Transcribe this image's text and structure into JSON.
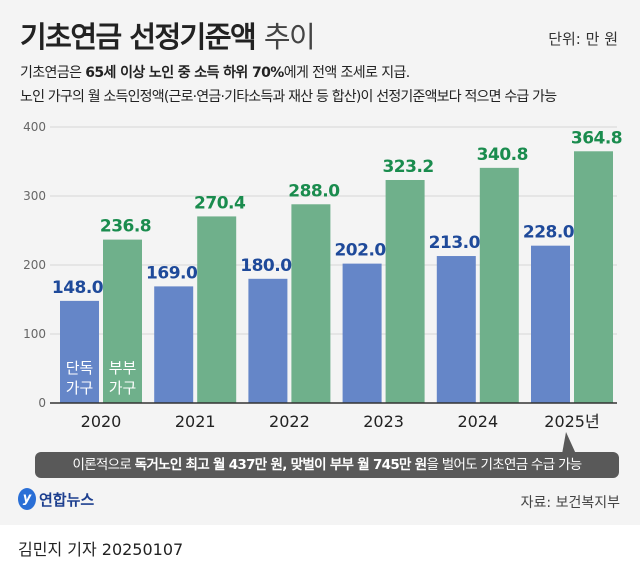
{
  "header": {
    "title_bold": "기초연금 선정기준액",
    "title_light": "추이",
    "unit": "단위: 만 원"
  },
  "description": {
    "line1": [
      {
        "text": "기초연금은 ",
        "bold": false
      },
      {
        "text": "65세 이상 노인 중 소득 하위 70%",
        "bold": true
      },
      {
        "text": "에게 전액 조세로 지급.",
        "bold": false
      }
    ],
    "line2": "노인 가구의 월 소득인정액(근로·연금·기타소득과 재산 등 합산)이 선정기준액보다 적으면 수급 가능"
  },
  "chart_data": {
    "type": "bar",
    "categories": [
      "2020",
      "2021",
      "2022",
      "2023",
      "2024",
      "2025년"
    ],
    "series": [
      {
        "name": "단독 가구",
        "values": [
          148.0,
          169.0,
          180.0,
          202.0,
          213.0,
          228.0
        ],
        "color": "#6586c8",
        "label_color": "#1f4a9a"
      },
      {
        "name": "부부 가구",
        "values": [
          236.8,
          270.4,
          288.0,
          323.2,
          340.8,
          364.8
        ],
        "color": "#6fb08b",
        "label_color": "#1a8c4e"
      }
    ],
    "yticks": [
      0,
      100,
      200,
      300,
      400
    ],
    "ylim": [
      0,
      400
    ],
    "grid": true,
    "legend": "inside first bars"
  },
  "callout": [
    {
      "text": "이론적으로 ",
      "bold": false
    },
    {
      "text": "독거노인 최고 월 437만 원, 맞벌이 부부 월 745만 원",
      "bold": true
    },
    {
      "text": "을 벌어도 기초연금 수급 가능",
      "bold": false
    }
  ],
  "footer": {
    "logo": "연합뉴스",
    "source": "자료: 보건복지부",
    "byline": "김민지 기자  20250107"
  }
}
